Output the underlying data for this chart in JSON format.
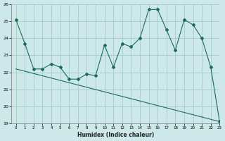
{
  "xlabel": "Humidex (Indice chaleur)",
  "bg_color": "#cde8e8",
  "grid_color": "#aacfcf",
  "line_color": "#1a6b5a",
  "series1_x": [
    0,
    1,
    2,
    3,
    4,
    5,
    6,
    7,
    8,
    9,
    10,
    11,
    12,
    13,
    14,
    15,
    16,
    17,
    18,
    19,
    20,
    21,
    22,
    23
  ],
  "series1_y": [
    25.1,
    23.7,
    22.2,
    22.2,
    22.5,
    22.3,
    21.6,
    21.6,
    21.9,
    21.8,
    23.6,
    22.3,
    23.7,
    23.5,
    24.0,
    25.7,
    25.7,
    24.5,
    23.3,
    25.1,
    24.8,
    24.0,
    22.3,
    19.1
  ],
  "series2_x": [
    0,
    23
  ],
  "series2_y": [
    22.2,
    19.1
  ],
  "ylim": [
    19,
    26
  ],
  "xlim": [
    -0.5,
    23
  ],
  "yticks": [
    19,
    20,
    21,
    22,
    23,
    24,
    25,
    26
  ],
  "xticks": [
    0,
    1,
    2,
    3,
    4,
    5,
    6,
    7,
    8,
    9,
    10,
    11,
    12,
    13,
    14,
    15,
    16,
    17,
    18,
    19,
    20,
    21,
    22,
    23
  ]
}
